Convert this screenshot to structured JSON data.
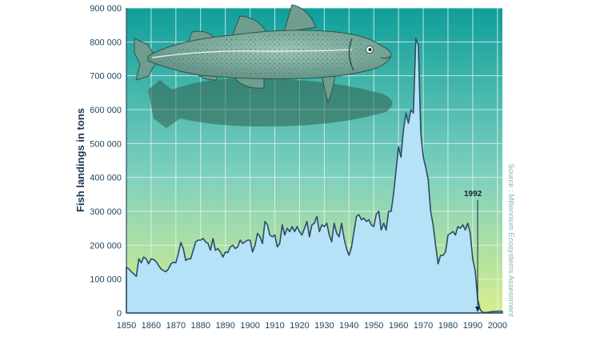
{
  "colors": {
    "area_fill": "#b5e2f6",
    "area_stroke": "#2f4a66",
    "bg_top": "#0f9e9a",
    "bg_mid": "#7fd0bf",
    "bg_bottom": "#d8ee8c",
    "grid": "#e8f6ee",
    "fish_body": "#6f9e91",
    "fish_shadow": "#2f5e4c"
  },
  "icons": [
    "cod-fish-illustration"
  ],
  "chart_data": {
    "type": "area",
    "title": "",
    "xlabel": "",
    "ylabel": "Fish landings in tons",
    "xlim": [
      1850,
      2002
    ],
    "ylim": [
      0,
      900000
    ],
    "grid": true,
    "legend": "none",
    "x_ticks": [
      "1850",
      "1860",
      "1870",
      "1880",
      "1890",
      "1900",
      "1910",
      "1920",
      "1930",
      "1940",
      "1950",
      "1960",
      "1970",
      "1980",
      "1990",
      "2000"
    ],
    "y_ticks": [
      "0",
      "100 000",
      "200 000",
      "300 000",
      "400 000",
      "500 000",
      "600 000",
      "700 000",
      "800 000",
      "900 000"
    ],
    "source": "Source : Millennium Ecosystems Assessment",
    "annotation": {
      "label": "1992",
      "x": 1992,
      "y": 0
    },
    "series": [
      {
        "values": [
          [
            1850,
            135000
          ],
          [
            1851,
            130000
          ],
          [
            1852,
            122000
          ],
          [
            1853,
            115000
          ],
          [
            1854,
            108000
          ],
          [
            1855,
            160000
          ],
          [
            1856,
            148000
          ],
          [
            1857,
            165000
          ],
          [
            1858,
            160000
          ],
          [
            1859,
            145000
          ],
          [
            1860,
            160000
          ],
          [
            1861,
            158000
          ],
          [
            1862,
            152000
          ],
          [
            1863,
            140000
          ],
          [
            1864,
            130000
          ],
          [
            1865,
            125000
          ],
          [
            1866,
            122000
          ],
          [
            1867,
            130000
          ],
          [
            1868,
            145000
          ],
          [
            1869,
            150000
          ],
          [
            1870,
            148000
          ],
          [
            1871,
            175000
          ],
          [
            1872,
            208000
          ],
          [
            1873,
            190000
          ],
          [
            1874,
            155000
          ],
          [
            1875,
            160000
          ],
          [
            1876,
            160000
          ],
          [
            1877,
            185000
          ],
          [
            1878,
            210000
          ],
          [
            1879,
            215000
          ],
          [
            1880,
            215000
          ],
          [
            1881,
            220000
          ],
          [
            1882,
            210000
          ],
          [
            1883,
            205000
          ],
          [
            1884,
            185000
          ],
          [
            1885,
            220000
          ],
          [
            1886,
            185000
          ],
          [
            1887,
            190000
          ],
          [
            1888,
            180000
          ],
          [
            1889,
            165000
          ],
          [
            1890,
            180000
          ],
          [
            1891,
            178000
          ],
          [
            1892,
            195000
          ],
          [
            1893,
            200000
          ],
          [
            1894,
            190000
          ],
          [
            1895,
            195000
          ],
          [
            1896,
            215000
          ],
          [
            1897,
            205000
          ],
          [
            1898,
            210000
          ],
          [
            1899,
            215000
          ],
          [
            1900,
            215000
          ],
          [
            1901,
            180000
          ],
          [
            1902,
            200000
          ],
          [
            1903,
            235000
          ],
          [
            1904,
            225000
          ],
          [
            1905,
            205000
          ],
          [
            1906,
            270000
          ],
          [
            1907,
            260000
          ],
          [
            1908,
            230000
          ],
          [
            1909,
            225000
          ],
          [
            1910,
            230000
          ],
          [
            1911,
            195000
          ],
          [
            1912,
            205000
          ],
          [
            1913,
            260000
          ],
          [
            1914,
            230000
          ],
          [
            1915,
            250000
          ],
          [
            1916,
            240000
          ],
          [
            1917,
            255000
          ],
          [
            1918,
            240000
          ],
          [
            1919,
            255000
          ],
          [
            1920,
            240000
          ],
          [
            1921,
            230000
          ],
          [
            1922,
            250000
          ],
          [
            1923,
            270000
          ],
          [
            1924,
            225000
          ],
          [
            1925,
            260000
          ],
          [
            1926,
            265000
          ],
          [
            1927,
            285000
          ],
          [
            1928,
            240000
          ],
          [
            1929,
            260000
          ],
          [
            1930,
            255000
          ],
          [
            1931,
            265000
          ],
          [
            1932,
            230000
          ],
          [
            1933,
            210000
          ],
          [
            1934,
            265000
          ],
          [
            1935,
            235000
          ],
          [
            1936,
            225000
          ],
          [
            1937,
            265000
          ],
          [
            1938,
            220000
          ],
          [
            1939,
            190000
          ],
          [
            1940,
            170000
          ],
          [
            1941,
            195000
          ],
          [
            1942,
            240000
          ],
          [
            1943,
            285000
          ],
          [
            1944,
            290000
          ],
          [
            1945,
            275000
          ],
          [
            1946,
            280000
          ],
          [
            1947,
            270000
          ],
          [
            1948,
            275000
          ],
          [
            1949,
            260000
          ],
          [
            1950,
            255000
          ],
          [
            1951,
            290000
          ],
          [
            1952,
            300000
          ],
          [
            1953,
            245000
          ],
          [
            1954,
            265000
          ],
          [
            1955,
            245000
          ],
          [
            1956,
            300000
          ],
          [
            1957,
            300000
          ],
          [
            1958,
            350000
          ],
          [
            1959,
            420000
          ],
          [
            1960,
            490000
          ],
          [
            1961,
            460000
          ],
          [
            1962,
            540000
          ],
          [
            1963,
            590000
          ],
          [
            1964,
            560000
          ],
          [
            1965,
            600000
          ],
          [
            1966,
            590000
          ],
          [
            1967,
            810000
          ],
          [
            1968,
            790000
          ],
          [
            1969,
            530000
          ],
          [
            1970,
            460000
          ],
          [
            1971,
            430000
          ],
          [
            1972,
            395000
          ],
          [
            1973,
            300000
          ],
          [
            1974,
            260000
          ],
          [
            1975,
            200000
          ],
          [
            1976,
            145000
          ],
          [
            1977,
            170000
          ],
          [
            1978,
            170000
          ],
          [
            1979,
            180000
          ],
          [
            1980,
            230000
          ],
          [
            1981,
            235000
          ],
          [
            1982,
            240000
          ],
          [
            1983,
            230000
          ],
          [
            1984,
            255000
          ],
          [
            1985,
            250000
          ],
          [
            1986,
            260000
          ],
          [
            1987,
            245000
          ],
          [
            1988,
            265000
          ],
          [
            1989,
            235000
          ],
          [
            1990,
            160000
          ],
          [
            1991,
            125000
          ],
          [
            1992,
            40000
          ],
          [
            1993,
            10000
          ],
          [
            1994,
            2000
          ],
          [
            1995,
            1500
          ],
          [
            1996,
            2000
          ],
          [
            1997,
            3000
          ],
          [
            1998,
            4000
          ],
          [
            1999,
            5000
          ],
          [
            2000,
            5000
          ],
          [
            2001,
            6000
          ],
          [
            2002,
            4000
          ]
        ]
      }
    ]
  }
}
